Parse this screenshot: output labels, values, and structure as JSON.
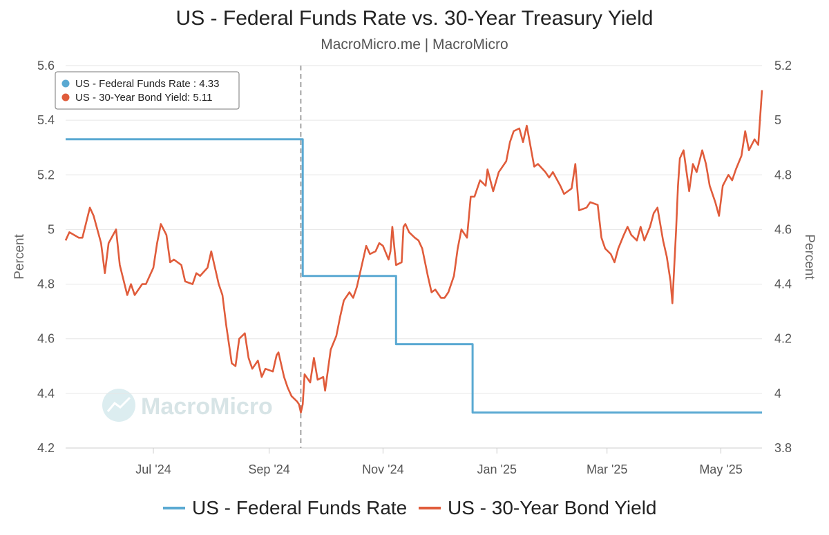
{
  "chart_data": {
    "type": "line",
    "title": "US - Federal Funds Rate vs. 30-Year Treasury Yield",
    "subtitle": "MacroMicro.me | MacroMicro",
    "watermark": "MacroMicro",
    "x_range": [
      "2024-05-15",
      "2025-05-23"
    ],
    "x_ticks": [
      {
        "date": "2024-07-01",
        "label": "Jul '24"
      },
      {
        "date": "2024-09-01",
        "label": "Sep '24"
      },
      {
        "date": "2024-11-01",
        "label": "Nov '24"
      },
      {
        "date": "2025-01-01",
        "label": "Jan '25"
      },
      {
        "date": "2025-03-01",
        "label": "Mar '25"
      },
      {
        "date": "2025-05-01",
        "label": "May '25"
      }
    ],
    "y_left": {
      "label": "Percent",
      "ylim": [
        4.2,
        5.6
      ],
      "ticks": [
        "4.2",
        "4.4",
        "4.6",
        "4.8",
        "5",
        "5.2",
        "5.4",
        "5.6"
      ]
    },
    "y_right": {
      "label": "Percent",
      "ylim": [
        3.8,
        5.2
      ],
      "ticks": [
        "3.8",
        "4",
        "4.2",
        "4.4",
        "4.6",
        "4.8",
        "5",
        "5.2"
      ]
    },
    "grid": true,
    "legend_position": "bottom",
    "crosshair_date": "2024-09-18",
    "tooltip": {
      "items": [
        {
          "text": "US - Federal Funds Rate : 4.33",
          "color": "#5aa9d2"
        },
        {
          "text": "US - 30-Year Bond Yield: 5.11",
          "color": "#e05c3b"
        }
      ]
    },
    "series": [
      {
        "name": "US - Federal Funds Rate",
        "axis": "left",
        "color": "#5aa9d2",
        "step": true,
        "points": [
          [
            "2024-05-15",
            5.33
          ],
          [
            "2024-09-18",
            5.33
          ],
          [
            "2024-09-19",
            4.83
          ],
          [
            "2024-11-07",
            4.83
          ],
          [
            "2024-11-08",
            4.58
          ],
          [
            "2024-12-18",
            4.58
          ],
          [
            "2024-12-19",
            4.33
          ],
          [
            "2025-05-23",
            4.33
          ]
        ]
      },
      {
        "name": "US - 30-Year Bond Yield",
        "axis": "right",
        "color": "#e05c3b",
        "step": false,
        "points": [
          [
            "2024-05-15",
            4.56
          ],
          [
            "2024-05-17",
            4.59
          ],
          [
            "2024-05-22",
            4.57
          ],
          [
            "2024-05-24",
            4.57
          ],
          [
            "2024-05-28",
            4.68
          ],
          [
            "2024-05-30",
            4.65
          ],
          [
            "2024-06-03",
            4.55
          ],
          [
            "2024-06-05",
            4.44
          ],
          [
            "2024-06-07",
            4.55
          ],
          [
            "2024-06-11",
            4.6
          ],
          [
            "2024-06-13",
            4.47
          ],
          [
            "2024-06-17",
            4.36
          ],
          [
            "2024-06-19",
            4.4
          ],
          [
            "2024-06-21",
            4.36
          ],
          [
            "2024-06-25",
            4.4
          ],
          [
            "2024-06-27",
            4.4
          ],
          [
            "2024-07-01",
            4.46
          ],
          [
            "2024-07-03",
            4.55
          ],
          [
            "2024-07-05",
            4.62
          ],
          [
            "2024-07-08",
            4.58
          ],
          [
            "2024-07-10",
            4.48
          ],
          [
            "2024-07-12",
            4.49
          ],
          [
            "2024-07-16",
            4.47
          ],
          [
            "2024-07-18",
            4.41
          ],
          [
            "2024-07-22",
            4.4
          ],
          [
            "2024-07-24",
            4.44
          ],
          [
            "2024-07-26",
            4.43
          ],
          [
            "2024-07-30",
            4.46
          ],
          [
            "2024-08-01",
            4.52
          ],
          [
            "2024-08-03",
            4.46
          ],
          [
            "2024-08-05",
            4.4
          ],
          [
            "2024-08-07",
            4.36
          ],
          [
            "2024-08-09",
            4.25
          ],
          [
            "2024-08-12",
            4.11
          ],
          [
            "2024-08-14",
            4.1
          ],
          [
            "2024-08-16",
            4.2
          ],
          [
            "2024-08-19",
            4.22
          ],
          [
            "2024-08-21",
            4.13
          ],
          [
            "2024-08-23",
            4.09
          ],
          [
            "2024-08-26",
            4.12
          ],
          [
            "2024-08-28",
            4.06
          ],
          [
            "2024-08-30",
            4.09
          ],
          [
            "2024-09-03",
            4.08
          ],
          [
            "2024-09-05",
            4.14
          ],
          [
            "2024-09-06",
            4.15
          ],
          [
            "2024-09-09",
            4.06
          ],
          [
            "2024-09-11",
            4.02
          ],
          [
            "2024-09-13",
            3.99
          ],
          [
            "2024-09-16",
            3.97
          ],
          [
            "2024-09-17",
            3.96
          ],
          [
            "2024-09-18",
            3.93
          ],
          [
            "2024-09-19",
            3.96
          ],
          [
            "2024-09-20",
            4.07
          ],
          [
            "2024-09-23",
            4.04
          ],
          [
            "2024-09-25",
            4.13
          ],
          [
            "2024-09-27",
            4.05
          ],
          [
            "2024-09-30",
            4.06
          ],
          [
            "2024-10-01",
            4.01
          ],
          [
            "2024-10-04",
            4.16
          ],
          [
            "2024-10-07",
            4.21
          ],
          [
            "2024-10-09",
            4.28
          ],
          [
            "2024-10-11",
            4.34
          ],
          [
            "2024-10-14",
            4.37
          ],
          [
            "2024-10-16",
            4.35
          ],
          [
            "2024-10-18",
            4.39
          ],
          [
            "2024-10-21",
            4.48
          ],
          [
            "2024-10-23",
            4.54
          ],
          [
            "2024-10-25",
            4.51
          ],
          [
            "2024-10-28",
            4.52
          ],
          [
            "2024-10-30",
            4.55
          ],
          [
            "2024-11-01",
            4.54
          ],
          [
            "2024-11-04",
            4.49
          ],
          [
            "2024-11-05",
            4.52
          ],
          [
            "2024-11-06",
            4.61
          ],
          [
            "2024-11-08",
            4.47
          ],
          [
            "2024-11-11",
            4.48
          ],
          [
            "2024-11-12",
            4.61
          ],
          [
            "2024-11-13",
            4.62
          ],
          [
            "2024-11-15",
            4.59
          ],
          [
            "2024-11-18",
            4.57
          ],
          [
            "2024-11-20",
            4.56
          ],
          [
            "2024-11-22",
            4.53
          ],
          [
            "2024-11-25",
            4.43
          ],
          [
            "2024-11-27",
            4.37
          ],
          [
            "2024-11-29",
            4.38
          ],
          [
            "2024-12-02",
            4.35
          ],
          [
            "2024-12-04",
            4.35
          ],
          [
            "2024-12-06",
            4.37
          ],
          [
            "2024-12-09",
            4.43
          ],
          [
            "2024-12-11",
            4.53
          ],
          [
            "2024-12-13",
            4.6
          ],
          [
            "2024-12-16",
            4.57
          ],
          [
            "2024-12-18",
            4.72
          ],
          [
            "2024-12-20",
            4.72
          ],
          [
            "2024-12-23",
            4.78
          ],
          [
            "2024-12-26",
            4.76
          ],
          [
            "2024-12-27",
            4.82
          ],
          [
            "2024-12-30",
            4.74
          ],
          [
            "2025-01-02",
            4.81
          ],
          [
            "2025-01-06",
            4.85
          ],
          [
            "2025-01-08",
            4.92
          ],
          [
            "2025-01-10",
            4.96
          ],
          [
            "2025-01-13",
            4.97
          ],
          [
            "2025-01-15",
            4.92
          ],
          [
            "2025-01-17",
            4.98
          ],
          [
            "2025-01-21",
            4.83
          ],
          [
            "2025-01-23",
            4.84
          ],
          [
            "2025-01-27",
            4.81
          ],
          [
            "2025-01-29",
            4.79
          ],
          [
            "2025-01-31",
            4.81
          ],
          [
            "2025-02-04",
            4.76
          ],
          [
            "2025-02-06",
            4.73
          ],
          [
            "2025-02-10",
            4.75
          ],
          [
            "2025-02-12",
            4.84
          ],
          [
            "2025-02-14",
            4.67
          ],
          [
            "2025-02-18",
            4.68
          ],
          [
            "2025-02-20",
            4.7
          ],
          [
            "2025-02-24",
            4.69
          ],
          [
            "2025-02-26",
            4.57
          ],
          [
            "2025-02-28",
            4.53
          ],
          [
            "2025-03-03",
            4.51
          ],
          [
            "2025-03-05",
            4.48
          ],
          [
            "2025-03-07",
            4.53
          ],
          [
            "2025-03-10",
            4.58
          ],
          [
            "2025-03-12",
            4.61
          ],
          [
            "2025-03-14",
            4.58
          ],
          [
            "2025-03-17",
            4.56
          ],
          [
            "2025-03-19",
            4.61
          ],
          [
            "2025-03-21",
            4.56
          ],
          [
            "2025-03-24",
            4.61
          ],
          [
            "2025-03-26",
            4.66
          ],
          [
            "2025-03-28",
            4.68
          ],
          [
            "2025-03-31",
            4.56
          ],
          [
            "2025-04-02",
            4.5
          ],
          [
            "2025-04-04",
            4.41
          ],
          [
            "2025-04-05",
            4.33
          ],
          [
            "2025-04-07",
            4.6
          ],
          [
            "2025-04-08",
            4.76
          ],
          [
            "2025-04-09",
            4.86
          ],
          [
            "2025-04-11",
            4.89
          ],
          [
            "2025-04-14",
            4.74
          ],
          [
            "2025-04-16",
            4.84
          ],
          [
            "2025-04-18",
            4.81
          ],
          [
            "2025-04-21",
            4.89
          ],
          [
            "2025-04-23",
            4.84
          ],
          [
            "2025-04-25",
            4.76
          ],
          [
            "2025-04-28",
            4.7
          ],
          [
            "2025-04-30",
            4.65
          ],
          [
            "2025-05-02",
            4.76
          ],
          [
            "2025-05-05",
            4.8
          ],
          [
            "2025-05-07",
            4.78
          ],
          [
            "2025-05-09",
            4.82
          ],
          [
            "2025-05-12",
            4.87
          ],
          [
            "2025-05-14",
            4.96
          ],
          [
            "2025-05-16",
            4.89
          ],
          [
            "2025-05-19",
            4.93
          ],
          [
            "2025-05-21",
            4.91
          ],
          [
            "2025-05-23",
            5.11
          ]
        ]
      }
    ]
  }
}
